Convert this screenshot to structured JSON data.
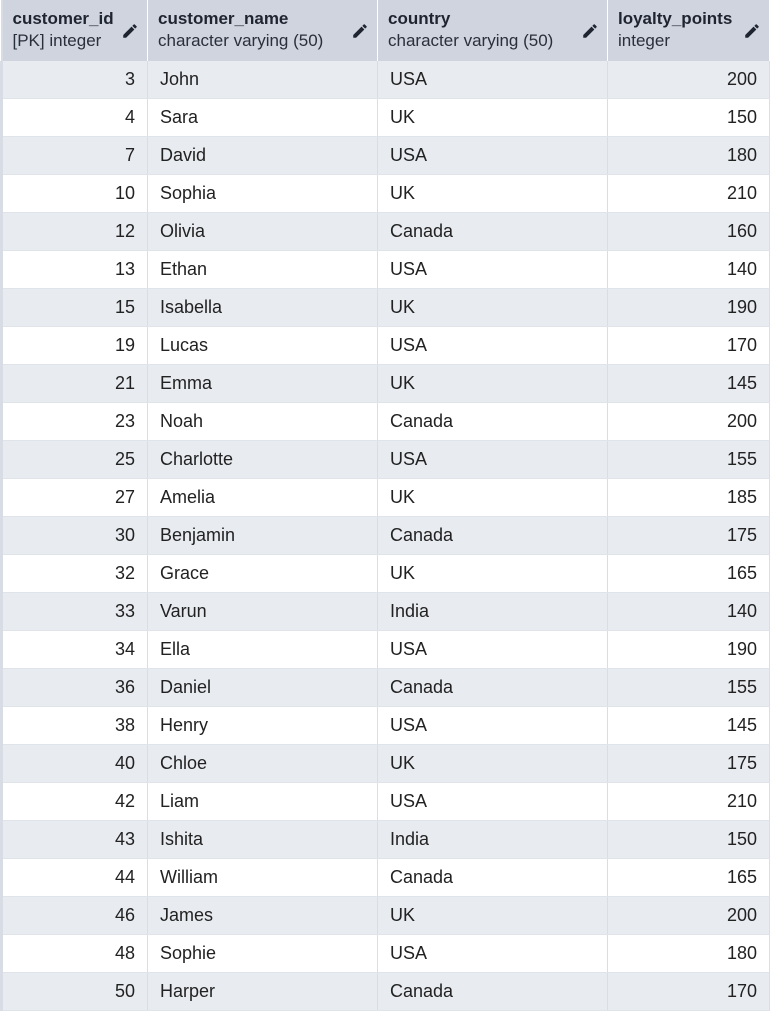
{
  "columns": [
    {
      "name": "customer_id",
      "type": "[PK] integer",
      "align": "right",
      "edit_icon": "pencil-icon"
    },
    {
      "name": "customer_name",
      "type": "character varying (50)",
      "align": "left",
      "edit_icon": "pencil-icon"
    },
    {
      "name": "country",
      "type": "character varying (50)",
      "align": "left",
      "edit_icon": "pencil-icon"
    },
    {
      "name": "loyalty_points",
      "type": "integer",
      "align": "right",
      "edit_icon": "pencil-icon"
    }
  ],
  "rows": [
    [
      "3",
      "John",
      "USA",
      "200"
    ],
    [
      "4",
      "Sara",
      "UK",
      "150"
    ],
    [
      "7",
      "David",
      "USA",
      "180"
    ],
    [
      "10",
      "Sophia",
      "UK",
      "210"
    ],
    [
      "12",
      "Olivia",
      "Canada",
      "160"
    ],
    [
      "13",
      "Ethan",
      "USA",
      "140"
    ],
    [
      "15",
      "Isabella",
      "UK",
      "190"
    ],
    [
      "19",
      "Lucas",
      "USA",
      "170"
    ],
    [
      "21",
      "Emma",
      "UK",
      "145"
    ],
    [
      "23",
      "Noah",
      "Canada",
      "200"
    ],
    [
      "25",
      "Charlotte",
      "USA",
      "155"
    ],
    [
      "27",
      "Amelia",
      "UK",
      "185"
    ],
    [
      "30",
      "Benjamin",
      "Canada",
      "175"
    ],
    [
      "32",
      "Grace",
      "UK",
      "165"
    ],
    [
      "33",
      "Varun",
      "India",
      "140"
    ],
    [
      "34",
      "Ella",
      "USA",
      "190"
    ],
    [
      "36",
      "Daniel",
      "Canada",
      "155"
    ],
    [
      "38",
      "Henry",
      "USA",
      "145"
    ],
    [
      "40",
      "Chloe",
      "UK",
      "175"
    ],
    [
      "42",
      "Liam",
      "USA",
      "210"
    ],
    [
      "43",
      "Ishita",
      "India",
      "150"
    ],
    [
      "44",
      "William",
      "Canada",
      "165"
    ],
    [
      "46",
      "James",
      "UK",
      "200"
    ],
    [
      "48",
      "Sophie",
      "USA",
      "180"
    ],
    [
      "50",
      "Harper",
      "Canada",
      "170"
    ]
  ],
  "colors": {
    "header_bg": "#cfd4df",
    "row_alt_bg": "#e8ebf0",
    "row_bg": "#ffffff",
    "text": "#222222"
  }
}
